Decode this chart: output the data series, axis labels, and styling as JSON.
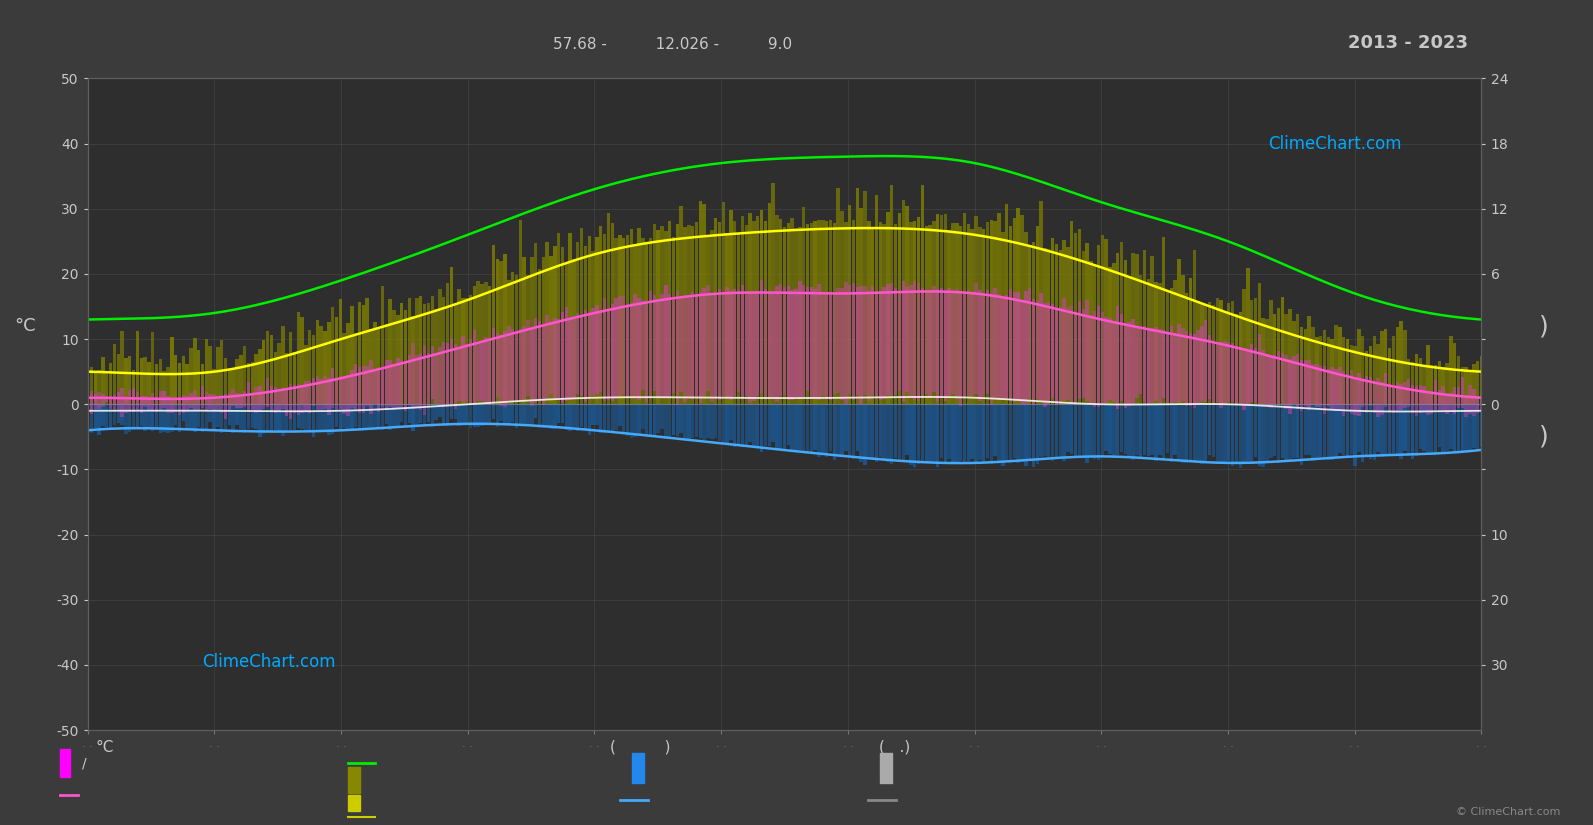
{
  "title": "2013 - 2023",
  "subtitle": "57.68 -          12.026 -          9.0",
  "bg_color": "#3b3b3b",
  "plot_bg_color": "#2e2e2e",
  "grid_color": "#505050",
  "text_color": "#c8c8c8",
  "ylim": [
    -50,
    50
  ],
  "green_line": [
    13,
    14,
    19,
    26,
    33,
    37,
    38,
    37,
    31,
    25,
    17,
    13
  ],
  "yellow_line": [
    5,
    5,
    10,
    16,
    23,
    26,
    27,
    26,
    21,
    14,
    8,
    5
  ],
  "pink_line": [
    1,
    1,
    4,
    9,
    14,
    17,
    17,
    17,
    13,
    9,
    4,
    1
  ],
  "white_line": [
    -1,
    -1,
    -1,
    0,
    1,
    1,
    1,
    1,
    0,
    0,
    -1,
    -1
  ],
  "blue_line": [
    -4,
    -4,
    -4,
    -3,
    -4,
    -6,
    -8,
    -9,
    -8,
    -9,
    -8,
    -7
  ],
  "olive_bar_color": "#808000",
  "pink_bar_color": "#cc44aa",
  "blue_bar_color": "#1a5599",
  "right_yticks_pos": [
    50,
    40,
    30,
    20,
    10,
    0,
    -10,
    -20,
    -30,
    -40
  ],
  "right_ytick_labels": [
    "24",
    "18",
    "12",
    "6",
    "",
    "0",
    "",
    "10",
    "20",
    "30"
  ],
  "left_yticks": [
    50,
    40,
    30,
    20,
    10,
    0,
    -10,
    -20,
    -30,
    -40,
    -50
  ],
  "watermark": "ClimeChart.com",
  "copyright": "© ClimeChart.com"
}
